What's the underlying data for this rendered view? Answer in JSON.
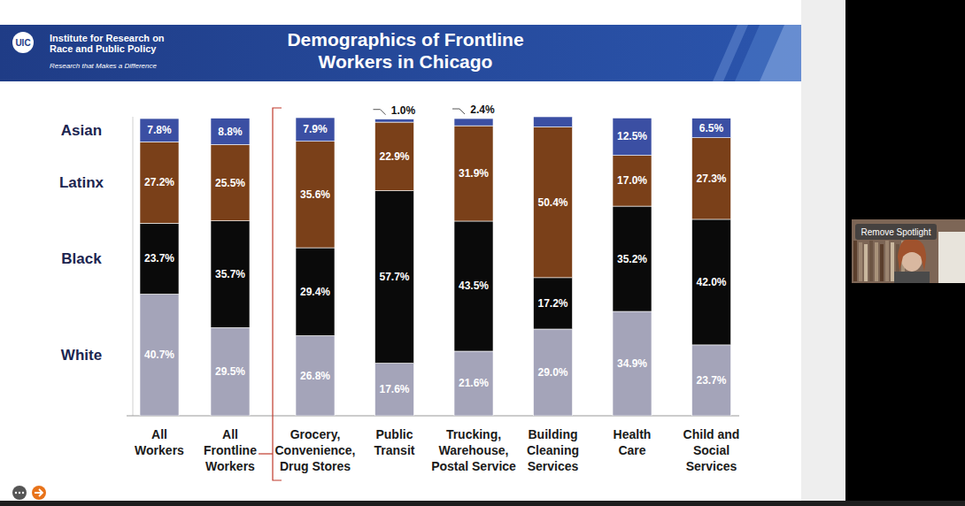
{
  "slide": {
    "logo": "UIC",
    "organization": "Institute for Research on\nRace and Public Policy",
    "tagline": "Research that Makes a Difference"
  },
  "meeting": {
    "spotlight_button": "Remove Spotlight"
  },
  "chart_data": {
    "type": "bar",
    "title": "Demographics of Frontline\nWorkers in Chicago",
    "stacked": true,
    "data_labels": true,
    "tick_labels": "x",
    "grid": false,
    "ylim": [
      0,
      100
    ],
    "categories": [
      "All\nWorkers",
      "All\nFrontline\nWorkers",
      "Grocery,\nConvenience,\nDrug Stores",
      "Public\nTransit",
      "Trucking,\nWarehouse,\nPostal Service",
      "Building\nCleaning\nServices",
      "Health\nCare",
      "Child and\nSocial\nServices"
    ],
    "series": [
      {
        "name": "White",
        "color": "#a4a4b9",
        "values": [
          40.7,
          29.5,
          26.8,
          17.6,
          21.6,
          29.0,
          34.9,
          23.7
        ],
        "value_labels": [
          "40.7%",
          "29.5%",
          "26.8%",
          "17.6%",
          "21.6%",
          "29.0%",
          "34.9%",
          "23.7%"
        ]
      },
      {
        "name": "Black",
        "color": "#0a0a0a",
        "values": [
          23.7,
          35.7,
          29.4,
          57.7,
          43.5,
          17.2,
          35.2,
          42.0
        ],
        "value_labels": [
          "23.7%",
          "35.7%",
          "29.4%",
          "57.7%",
          "43.5%",
          "17.2%",
          "35.2%",
          "42.0%"
        ]
      },
      {
        "name": "Latinx",
        "color": "#7a4019",
        "values": [
          27.2,
          25.5,
          35.6,
          22.9,
          31.9,
          50.4,
          17.0,
          27.3
        ],
        "value_labels": [
          "27.2%",
          "25.5%",
          "35.6%",
          "22.9%",
          "31.9%",
          "50.4%",
          "17.0%",
          "27.3%"
        ]
      },
      {
        "name": "Asian",
        "color": "#3b4fa3",
        "values": [
          7.8,
          8.8,
          7.9,
          1.0,
          2.4,
          3.4,
          12.5,
          6.5
        ],
        "value_labels": [
          "7.8%",
          "8.8%",
          "7.9%",
          "1.0%",
          "2.4%",
          null,
          "12.5%",
          "6.5%"
        ]
      }
    ]
  }
}
